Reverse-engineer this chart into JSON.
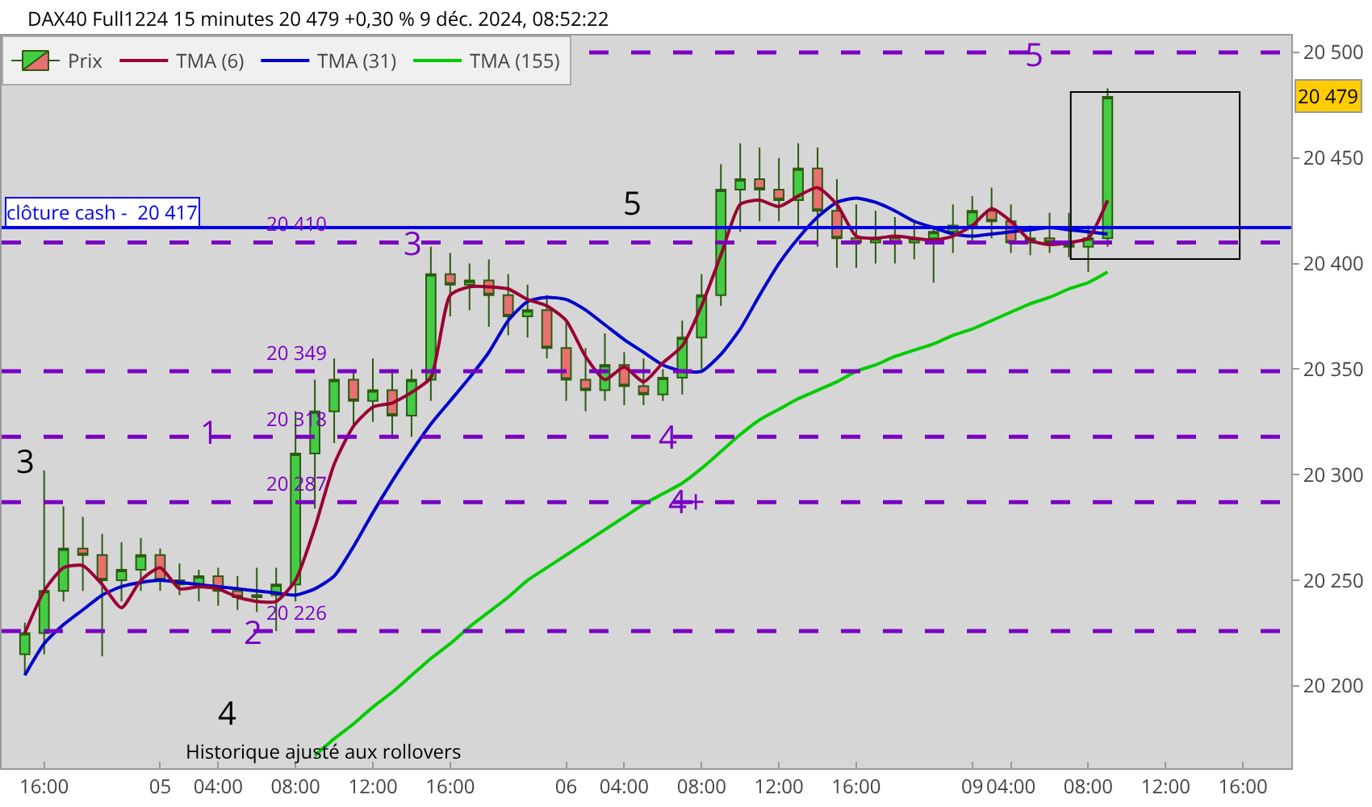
{
  "chart_data": {
    "type": "candlestick",
    "title": "DAX40 Full1224 15 minutes 20 479 +0,30 % 9 déc. 2024, 08:52:22",
    "categories": [
      null,
      "16:00",
      null,
      null,
      null,
      null,
      null,
      "05",
      null,
      null,
      "04:00",
      null,
      null,
      null,
      "08:00",
      null,
      null,
      null,
      "12:00",
      null,
      null,
      null,
      "16:00",
      null,
      null,
      null,
      null,
      null,
      "06",
      null,
      null,
      "04:00",
      null,
      null,
      null,
      "08:00",
      null,
      null,
      null,
      "12:00",
      null,
      null,
      null,
      "16:00",
      null,
      null,
      null,
      null,
      null,
      "09",
      null,
      "04:00",
      null,
      null,
      null,
      "08:00",
      null,
      null,
      null,
      "12:00",
      null,
      null,
      null,
      "16:00",
      null,
      null
    ],
    "series": [
      {
        "name": "Prix",
        "ohlc": [
          [
            20215,
            20230,
            20205,
            20225
          ],
          [
            20225,
            20302,
            20215,
            20245
          ],
          [
            20245,
            20285,
            20240,
            20265
          ],
          [
            20265,
            20280,
            20245,
            20262
          ],
          [
            20262,
            20272,
            20214,
            20250
          ],
          [
            20250,
            20268,
            20240,
            20255
          ],
          [
            20255,
            20270,
            20245,
            20262
          ],
          [
            20262,
            20265,
            20245,
            20250
          ],
          [
            20250,
            20258,
            20243,
            20248
          ],
          [
            20248,
            20255,
            20240,
            20252
          ],
          [
            20252,
            20256,
            20238,
            20245
          ],
          [
            20245,
            20252,
            20236,
            20242
          ],
          [
            20242,
            20256,
            20235,
            20243
          ],
          [
            20243,
            20256,
            20226,
            20248
          ],
          [
            20248,
            20330,
            20240,
            20310
          ],
          [
            20310,
            20345,
            20284,
            20330
          ],
          [
            20330,
            20355,
            20315,
            20345
          ],
          [
            20345,
            20350,
            20322,
            20335
          ],
          [
            20335,
            20355,
            20325,
            20340
          ],
          [
            20340,
            20350,
            20317,
            20328
          ],
          [
            20328,
            20350,
            20318,
            20345
          ],
          [
            20345,
            20408,
            20335,
            20395
          ],
          [
            20395,
            20405,
            20375,
            20390
          ],
          [
            20390,
            20400,
            20378,
            20392
          ],
          [
            20392,
            20402,
            20370,
            20385
          ],
          [
            20385,
            20395,
            20366,
            20375
          ],
          [
            20375,
            20390,
            20365,
            20378
          ],
          [
            20378,
            20385,
            20355,
            20360
          ],
          [
            20360,
            20373,
            20335,
            20345
          ],
          [
            20345,
            20360,
            20330,
            20340
          ],
          [
            20340,
            20367,
            20335,
            20352
          ],
          [
            20352,
            20358,
            20333,
            20342
          ],
          [
            20342,
            20355,
            20333,
            20338
          ],
          [
            20338,
            20350,
            20335,
            20346
          ],
          [
            20346,
            20373,
            20338,
            20365
          ],
          [
            20365,
            20395,
            20350,
            20385
          ],
          [
            20385,
            20447,
            20380,
            20435
          ],
          [
            20435,
            20457,
            20415,
            20440
          ],
          [
            20440,
            20455,
            20420,
            20435
          ],
          [
            20435,
            20450,
            20420,
            20430
          ],
          [
            20430,
            20457,
            20418,
            20445
          ],
          [
            20445,
            20455,
            20408,
            20425
          ],
          [
            20425,
            20440,
            20398,
            20412
          ],
          [
            20412,
            20428,
            20398,
            20410
          ],
          [
            20410,
            20425,
            20400,
            20412
          ],
          [
            20412,
            20422,
            20400,
            20410
          ],
          [
            20410,
            20420,
            20402,
            20412
          ],
          [
            20412,
            20418,
            20391,
            20415
          ],
          [
            20415,
            20428,
            20405,
            20418
          ],
          [
            20418,
            20432,
            20410,
            20425
          ],
          [
            20425,
            20436,
            20412,
            20420
          ],
          [
            20420,
            20428,
            20405,
            20410
          ],
          [
            20410,
            20418,
            20404,
            20412
          ],
          [
            20412,
            20424,
            20405,
            20410
          ],
          [
            20410,
            20424,
            20403,
            20408
          ],
          [
            20408,
            20418,
            20396,
            20412
          ],
          [
            20412,
            20483,
            20408,
            20479
          ],
          null,
          null,
          null,
          null,
          null,
          null,
          null,
          null,
          null
        ]
      },
      {
        "name": "TMA (155)",
        "type": "line",
        "color": "#00cc00",
        "values": [
          null,
          null,
          null,
          null,
          null,
          null,
          null,
          null,
          null,
          null,
          null,
          null,
          null,
          null,
          null,
          20167,
          20175,
          20182,
          20190,
          20197,
          20205,
          20213,
          20220,
          20228,
          20235,
          20242,
          20250,
          20256,
          20262,
          20268,
          20274,
          20280,
          20286,
          20291,
          20296,
          20303,
          20311,
          20319,
          20326,
          20331,
          20336,
          20340,
          20344,
          20349,
          20352,
          20356,
          20359,
          20362,
          20366,
          20369,
          20373,
          20377,
          20381,
          20384,
          20388,
          20391,
          20396,
          null,
          null,
          null,
          null,
          null,
          null,
          null,
          null,
          null
        ]
      },
      {
        "name": "TMA (31)",
        "type": "line",
        "color": "#0000cc",
        "values": [
          20205,
          20220,
          20229,
          20236,
          20243,
          20247,
          20249,
          20250,
          20249,
          20248,
          20247,
          20246,
          20245,
          20244,
          20243,
          20246,
          20252,
          20266,
          20282,
          20297,
          20311,
          20324,
          20335,
          20346,
          20358,
          20373,
          20382,
          20384,
          20383,
          20378,
          20371,
          20364,
          20358,
          20352,
          20349,
          20349,
          20357,
          20369,
          20385,
          20400,
          20412,
          20422,
          20429,
          20431,
          20429,
          20425,
          20420,
          20417,
          20414,
          20413,
          20414,
          20415,
          20416,
          20417,
          20416,
          20415,
          20414,
          null,
          null,
          null,
          null,
          null,
          null,
          null,
          null,
          null
        ]
      },
      {
        "name": "TMA (6)",
        "type": "line",
        "color": "#990033",
        "values": [
          20225,
          20245,
          20256,
          20257,
          20248,
          20237,
          20250,
          20256,
          20246,
          20247,
          20246,
          20242,
          20240,
          20240,
          20250,
          20275,
          20305,
          20323,
          20332,
          20334,
          20339,
          20346,
          20385,
          20389,
          20389,
          20388,
          20383,
          20380,
          20373,
          20356,
          20345,
          20351,
          20344,
          20353,
          20361,
          20380,
          20404,
          20428,
          20430,
          20427,
          20432,
          20436,
          20428,
          20413,
          20412,
          20413,
          20412,
          20411,
          20413,
          20418,
          20426,
          20420,
          20411,
          20409,
          20410,
          20412,
          20430,
          null,
          null,
          null,
          null,
          null,
          null,
          null,
          null,
          null
        ]
      }
    ],
    "ylim": [
      20161,
      20508
    ],
    "yticks": [
      {
        "value": 20200,
        "label": "20 200"
      },
      {
        "value": 20250,
        "label": "20 250"
      },
      {
        "value": 20300,
        "label": "20 300"
      },
      {
        "value": 20350,
        "label": "20 350"
      },
      {
        "value": 20400,
        "label": "20 400"
      },
      {
        "value": 20450,
        "label": "20 450"
      },
      {
        "value": 20500,
        "label": "20 500"
      }
    ],
    "ref_lines": [
      {
        "axis": "y",
        "value": 20500,
        "label": null,
        "color": "#7a00c2",
        "line_style": "dashed"
      },
      {
        "axis": "y",
        "value": 20410,
        "label": "20 410",
        "color": "#7a00c2",
        "line_style": "dashed"
      },
      {
        "axis": "y",
        "value": 20349,
        "label": "20 349",
        "color": "#7a00c2",
        "line_style": "dashed"
      },
      {
        "axis": "y",
        "value": 20318,
        "label": "20 318",
        "color": "#7a00c2",
        "line_style": "dashed"
      },
      {
        "axis": "y",
        "value": 20287,
        "label": "20 287",
        "color": "#7a00c2",
        "line_style": "dashed"
      },
      {
        "axis": "y",
        "value": 20226,
        "label": "20 226",
        "color": "#7a00c2",
        "line_style": "dashed"
      },
      {
        "axis": "y",
        "value": 20417,
        "label": "clôture cash -  20 417",
        "color": "#0000ee",
        "line_style": "solid"
      }
    ],
    "annotations": [
      "3",
      "4",
      "5",
      "1",
      "2",
      "3",
      "4",
      "4+",
      "5",
      "Historique ajusté aux rollovers",
      {
        "text": "20 479",
        "y": 20479
      }
    ],
    "legend": "top left",
    "grid": false,
    "marker": "none",
    "line_style": "solid"
  }
}
